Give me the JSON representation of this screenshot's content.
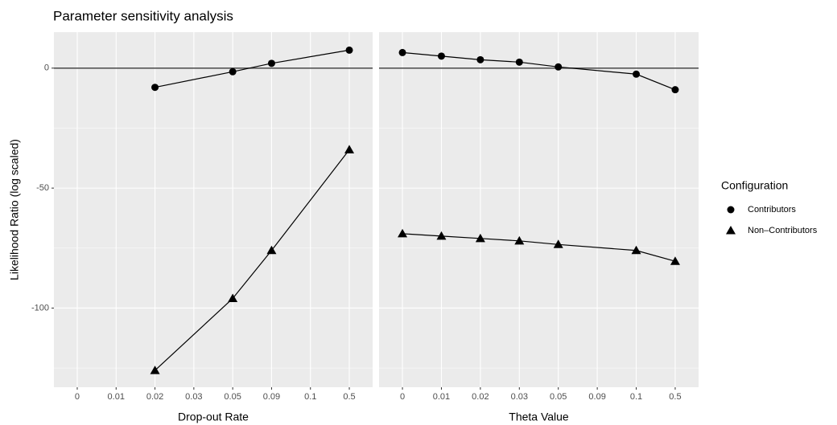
{
  "chart_data": {
    "type": "line",
    "title": "Parameter sensitivity analysis",
    "y_label": "Likelihood Ratio (log scaled)",
    "legend_title": "Configuration",
    "ylim": [
      -133,
      15
    ],
    "yticks": [
      0,
      -50,
      -100
    ],
    "hline": 0,
    "grid": true,
    "legend_position": "right",
    "legend": [
      {
        "name": "Contributors",
        "marker": "circle",
        "color": "#000000"
      },
      {
        "name": "Non–Contributors",
        "marker": "triangle",
        "color": "#000000"
      }
    ],
    "panels": [
      {
        "x_label": "Drop-out Rate",
        "categories": [
          "0",
          "0.01",
          "0.02",
          "0.03",
          "0.05",
          "0.09",
          "0.1",
          "0.5"
        ],
        "series": [
          {
            "x": [
              "0.02",
              "0.05",
              "0.09",
              "0.5"
            ],
            "values": [
              -8,
              -1.5,
              2,
              7.5
            ]
          },
          {
            "x": [
              "0.02",
              "0.05",
              "0.09",
              "0.5"
            ],
            "values": [
              -126,
              -96,
              -76,
              -34
            ]
          }
        ]
      },
      {
        "x_label": "Theta Value",
        "categories": [
          "0",
          "0.01",
          "0.02",
          "0.03",
          "0.05",
          "0.09",
          "0.1",
          "0.5"
        ],
        "series": [
          {
            "x": [
              "0",
              "0.01",
              "0.02",
              "0.03",
              "0.05",
              "0.1",
              "0.5"
            ],
            "values": [
              6.5,
              5,
              3.5,
              2.5,
              0.5,
              -2.5,
              -9
            ]
          },
          {
            "x": [
              "0",
              "0.01",
              "0.02",
              "0.03",
              "0.05",
              "0.1",
              "0.5"
            ],
            "values": [
              -69,
              -70,
              -71,
              -72,
              -73.5,
              -76,
              -80.5
            ]
          }
        ]
      }
    ]
  }
}
